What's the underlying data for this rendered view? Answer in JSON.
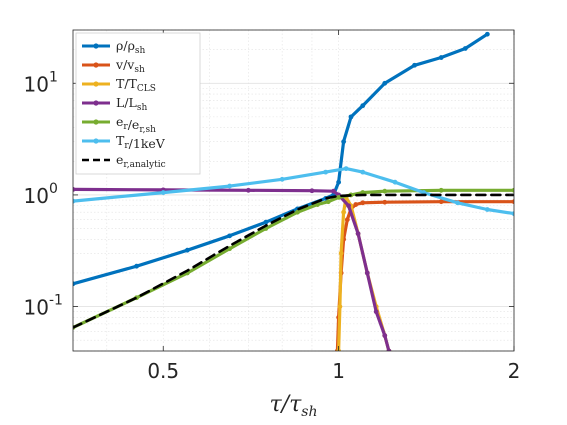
{
  "chart_data": {
    "type": "line",
    "xscale": "log",
    "yscale": "log",
    "xlim": [
      0.35,
      2.0
    ],
    "ylim": [
      0.04,
      30
    ],
    "grid": true,
    "legend_position": "top-left",
    "xlabel": {
      "main": "τ/τ",
      "sub": "sh"
    },
    "xticks": [
      {
        "value": 0.5,
        "label": "0.5"
      },
      {
        "value": 1,
        "label": "1"
      },
      {
        "value": 2,
        "label": "2"
      }
    ],
    "yticks": [
      {
        "value": 0.1,
        "base": "10",
        "exp": "-1"
      },
      {
        "value": 1,
        "base": "10",
        "exp": "0"
      },
      {
        "value": 10,
        "base": "10",
        "exp": "1"
      }
    ],
    "series": [
      {
        "name": "ρ/ρ",
        "name_sub": "sh",
        "color": "#0072BD",
        "style": "solid",
        "markers": true,
        "points": [
          [
            0.35,
            0.16
          ],
          [
            0.45,
            0.23
          ],
          [
            0.55,
            0.32
          ],
          [
            0.65,
            0.43
          ],
          [
            0.75,
            0.57
          ],
          [
            0.85,
            0.75
          ],
          [
            0.95,
            0.93
          ],
          [
            0.98,
            1.0
          ],
          [
            1.0,
            1.3
          ],
          [
            1.02,
            3.0
          ],
          [
            1.05,
            5.0
          ],
          [
            1.1,
            6.3
          ],
          [
            1.2,
            10.0
          ],
          [
            1.35,
            14.5
          ],
          [
            1.5,
            17.0
          ],
          [
            1.65,
            20.5
          ],
          [
            1.8,
            27.5
          ]
        ]
      },
      {
        "name": "v/v",
        "name_sub": "sh",
        "color": "#D95319",
        "style": "solid",
        "markers": true,
        "points": [
          [
            0.995,
            0.04
          ],
          [
            1.0,
            0.08
          ],
          [
            1.01,
            0.2
          ],
          [
            1.02,
            0.4
          ],
          [
            1.035,
            0.6
          ],
          [
            1.05,
            0.75
          ],
          [
            1.07,
            0.82
          ],
          [
            1.1,
            0.85
          ],
          [
            1.2,
            0.86
          ],
          [
            1.5,
            0.87
          ],
          [
            2.0,
            0.87
          ]
        ]
      },
      {
        "name": "T/T",
        "name_sub": "CLS",
        "color": "#EDB120",
        "style": "solid",
        "markers": true,
        "points": [
          [
            1.0,
            0.04
          ],
          [
            1.005,
            0.1
          ],
          [
            1.01,
            0.3
          ],
          [
            1.02,
            0.7
          ],
          [
            1.03,
            0.95
          ],
          [
            1.05,
            0.8
          ],
          [
            1.08,
            0.45
          ],
          [
            1.12,
            0.2
          ],
          [
            1.16,
            0.1
          ],
          [
            1.2,
            0.055
          ],
          [
            1.22,
            0.04
          ]
        ]
      },
      {
        "name": "L/L",
        "name_sub": "sh",
        "color": "#7E2F8E",
        "style": "solid",
        "markers": true,
        "points": [
          [
            0.35,
            1.12
          ],
          [
            0.5,
            1.11
          ],
          [
            0.7,
            1.1
          ],
          [
            0.9,
            1.09
          ],
          [
            0.98,
            1.08
          ],
          [
            1.0,
            1.0
          ],
          [
            1.04,
            0.8
          ],
          [
            1.08,
            0.45
          ],
          [
            1.12,
            0.2
          ],
          [
            1.16,
            0.09
          ],
          [
            1.2,
            0.055
          ],
          [
            1.22,
            0.04
          ]
        ]
      },
      {
        "name": "e/e",
        "name_sub_num": "r",
        "name_sub": "r,sh",
        "color": "#77AC30",
        "style": "solid",
        "markers": true,
        "points": [
          [
            0.35,
            0.065
          ],
          [
            0.45,
            0.12
          ],
          [
            0.55,
            0.2
          ],
          [
            0.65,
            0.33
          ],
          [
            0.75,
            0.5
          ],
          [
            0.85,
            0.7
          ],
          [
            0.92,
            0.82
          ],
          [
            0.96,
            0.87
          ],
          [
            1.0,
            0.95
          ],
          [
            1.05,
            1.0
          ],
          [
            1.1,
            1.05
          ],
          [
            1.2,
            1.08
          ],
          [
            1.5,
            1.1
          ],
          [
            2.0,
            1.1
          ]
        ]
      },
      {
        "name": "T/1keV",
        "name_sub_num": "r",
        "color": "#4DBEEE",
        "style": "solid",
        "markers": true,
        "points": [
          [
            0.35,
            0.88
          ],
          [
            0.5,
            1.05
          ],
          [
            0.65,
            1.2
          ],
          [
            0.8,
            1.38
          ],
          [
            0.95,
            1.6
          ],
          [
            1.03,
            1.72
          ],
          [
            1.1,
            1.6
          ],
          [
            1.25,
            1.3
          ],
          [
            1.4,
            1.05
          ],
          [
            1.6,
            0.85
          ],
          [
            1.8,
            0.74
          ],
          [
            2.0,
            0.68
          ]
        ]
      },
      {
        "name": "e",
        "name_sub": "r,analytic",
        "color": "#000000",
        "style": "dashed",
        "markers": false,
        "points": [
          [
            0.35,
            0.065
          ],
          [
            0.45,
            0.12
          ],
          [
            0.55,
            0.21
          ],
          [
            0.65,
            0.35
          ],
          [
            0.75,
            0.53
          ],
          [
            0.85,
            0.74
          ],
          [
            0.95,
            0.93
          ],
          [
            1.0,
            0.98
          ],
          [
            1.1,
            1.0
          ],
          [
            1.5,
            1.0
          ],
          [
            2.0,
            1.0
          ]
        ]
      }
    ]
  }
}
